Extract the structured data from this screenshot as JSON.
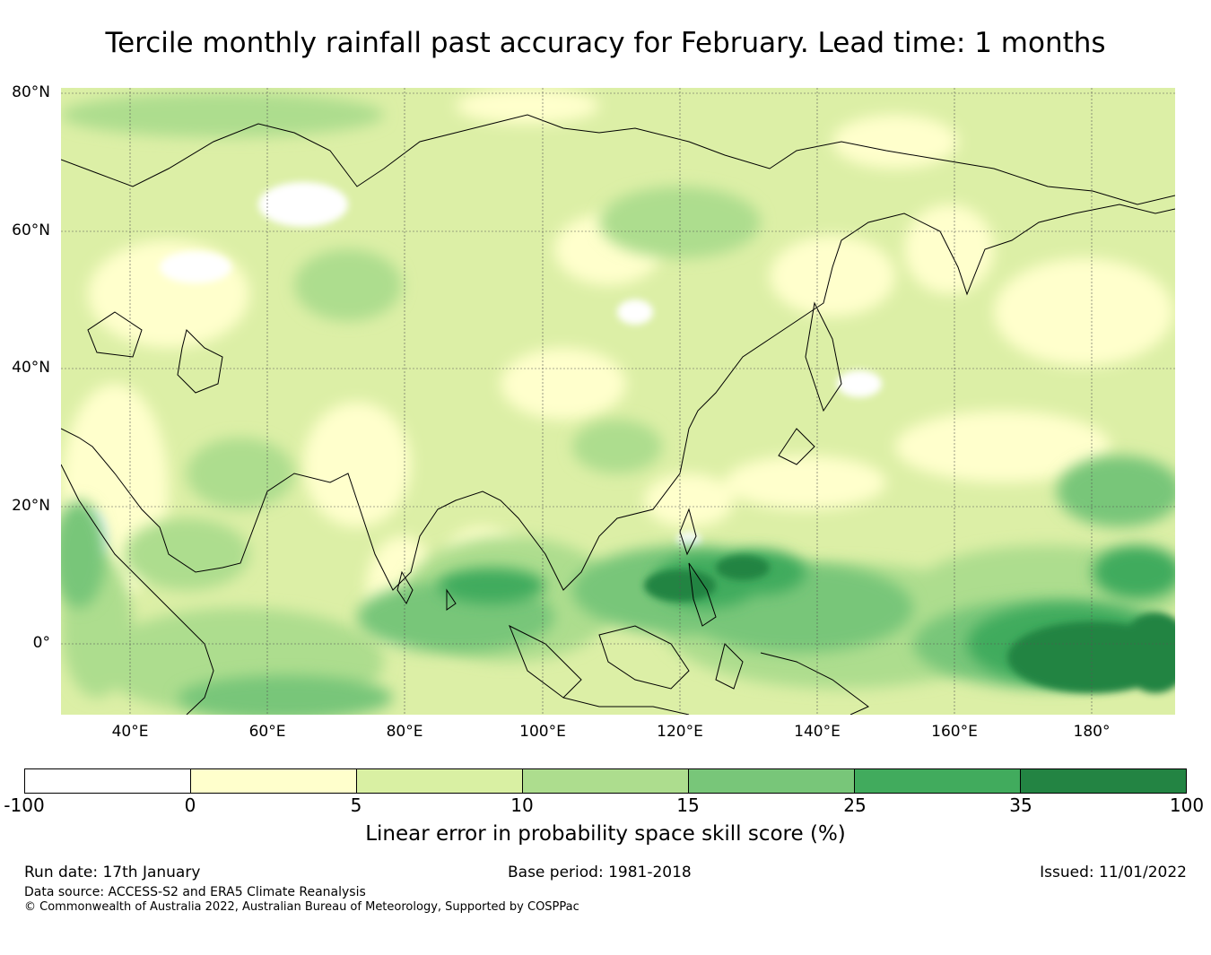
{
  "title": "Tercile monthly rainfall past accuracy for February. Lead time: 1 months",
  "map": {
    "lat_labels": [
      "80°N",
      "60°N",
      "40°N",
      "20°N",
      "0°"
    ],
    "lon_labels": [
      "40°E",
      "60°E",
      "80°E",
      "100°E",
      "120°E",
      "140°E",
      "160°E",
      "180°"
    ],
    "graticule": "dotted",
    "extent": {
      "lon_min": 30,
      "lon_max": 192,
      "lat_min": -10,
      "lat_max": 81
    }
  },
  "colorbar": {
    "ticks": [
      "-100",
      "0",
      "5",
      "10",
      "15",
      "25",
      "35",
      "100"
    ],
    "colors": [
      "#ffffff",
      "#ffffcc",
      "#d9f0a3",
      "#addd8e",
      "#78c679",
      "#41ab5d",
      "#238443"
    ],
    "label": "Linear error in probability space skill score (%)"
  },
  "footer": {
    "run_date": "Run date: 17th January",
    "base_period": "Base period: 1981-2018",
    "issued": "Issued: 11/01/2022",
    "data_source": "Data source: ACCESS-S2 and ERA5 Climate Reanalysis",
    "copyright": "© Commonwealth of Australia 2022, Australian Bureau of Meteorology, Supported by COSPPac"
  }
}
